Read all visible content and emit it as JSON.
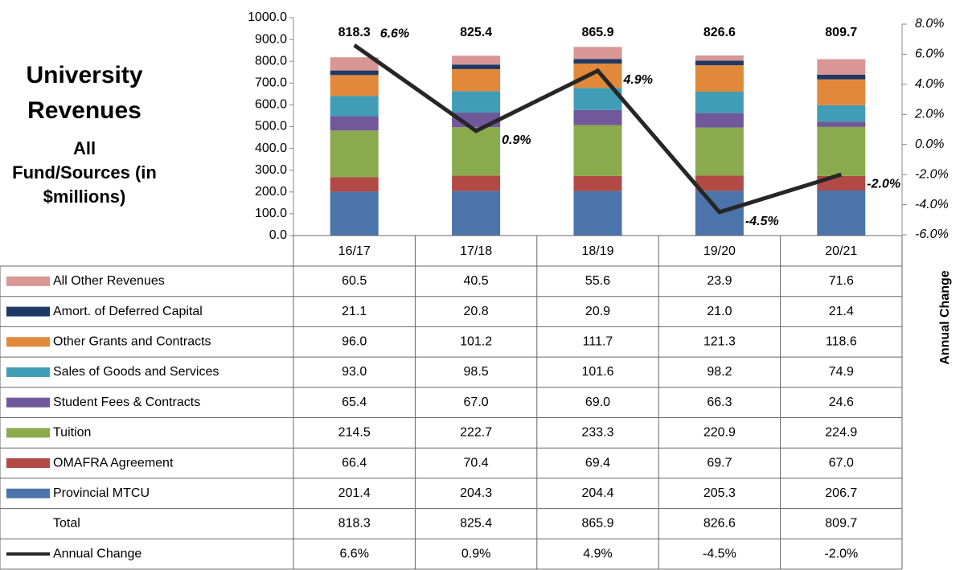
{
  "chart_data": {
    "type": "bar",
    "stacked": true,
    "title": "University Revenues",
    "subtitle": "All Fund/Sources (in $millions)",
    "categories": [
      "16/17",
      "17/18",
      "18/19",
      "19/20",
      "20/21"
    ],
    "series": [
      {
        "name": "All Other Revenues",
        "color": "#d99694",
        "values": [
          60.5,
          40.5,
          55.6,
          23.9,
          71.6
        ],
        "value_labels": [
          "60.5",
          "40.5",
          "55.6",
          "23.9",
          "71.6"
        ]
      },
      {
        "name": "Amort. of Deferred Capital",
        "color": "#1f3864",
        "values": [
          21.1,
          20.8,
          20.9,
          21.0,
          21.4
        ],
        "value_labels": [
          "21.1",
          "20.8",
          "20.9",
          "21.0",
          "21.4"
        ]
      },
      {
        "name": "Other Grants and Contracts",
        "color": "#e2883a",
        "values": [
          96.0,
          101.2,
          111.7,
          121.3,
          118.6
        ],
        "value_labels": [
          "96.0",
          "101.2",
          "111.7",
          "121.3",
          "118.6"
        ]
      },
      {
        "name": "Sales of Goods and Services",
        "color": "#419db5",
        "values": [
          93.0,
          98.5,
          101.6,
          98.2,
          74.9
        ],
        "value_labels": [
          "93.0",
          "98.5",
          "101.6",
          "98.2",
          "74.9"
        ]
      },
      {
        "name": "Student Fees & Contracts",
        "color": "#70589a",
        "values": [
          65.4,
          67.0,
          69.0,
          66.3,
          24.6
        ],
        "value_labels": [
          "65.4",
          "67.0",
          "69.0",
          "66.3",
          "24.6"
        ]
      },
      {
        "name": "Tuition",
        "color": "#8aaa4e",
        "values": [
          214.5,
          222.7,
          233.3,
          220.9,
          224.9
        ],
        "value_labels": [
          "214.5",
          "222.7",
          "233.3",
          "220.9",
          "224.9"
        ]
      },
      {
        "name": "OMAFRA Agreement",
        "color": "#b14a45",
        "values": [
          66.4,
          70.4,
          69.4,
          69.7,
          67.0
        ],
        "value_labels": [
          "66.4",
          "70.4",
          "69.4",
          "69.7",
          "67.0"
        ]
      },
      {
        "name": "Provincial MTCU",
        "color": "#4a74aa",
        "values": [
          201.4,
          204.3,
          204.4,
          205.3,
          206.7
        ],
        "value_labels": [
          "201.4",
          "204.3",
          "204.4",
          "205.3",
          "206.7"
        ]
      },
      {
        "name": "Annual Change",
        "type": "line",
        "axis": "y2",
        "color": "#262626",
        "values": [
          6.6,
          0.9,
          4.9,
          -4.5,
          -2.0
        ],
        "value_labels": [
          "6.6%",
          "0.9%",
          "4.9%",
          "-4.5%",
          "-2.0%"
        ]
      }
    ],
    "total_label": "Total",
    "totals": [
      818.3,
      825.4,
      865.9,
      826.6,
      809.7
    ],
    "ylim": [
      0,
      1000
    ],
    "yticks": [
      {
        "value": 0,
        "label": "0.0"
      },
      {
        "value": 100,
        "label": "100.0"
      },
      {
        "value": 200,
        "label": "200.0"
      },
      {
        "value": 300,
        "label": "300.0"
      },
      {
        "value": 400,
        "label": "400.0"
      },
      {
        "value": 500,
        "label": "500.0"
      },
      {
        "value": 600,
        "label": "600.0"
      },
      {
        "value": 700,
        "label": "700.0"
      },
      {
        "value": 800,
        "label": "800.0"
      },
      {
        "value": 900,
        "label": "900.0"
      },
      {
        "value": 1000,
        "label": "1000.0"
      }
    ],
    "y2label": "Annual Change",
    "y2lim": [
      -6,
      8
    ],
    "y2ticks": [
      {
        "value": -6,
        "label": "-6.0%"
      },
      {
        "value": -4,
        "label": "-4.0%"
      },
      {
        "value": -2,
        "label": "-2.0%"
      },
      {
        "value": 0,
        "label": "0.0%"
      },
      {
        "value": 2,
        "label": "2.0%"
      },
      {
        "value": 4,
        "label": "4.0%"
      },
      {
        "value": 6,
        "label": "6.0%"
      },
      {
        "value": 8,
        "label": "8.0%"
      }
    ]
  }
}
